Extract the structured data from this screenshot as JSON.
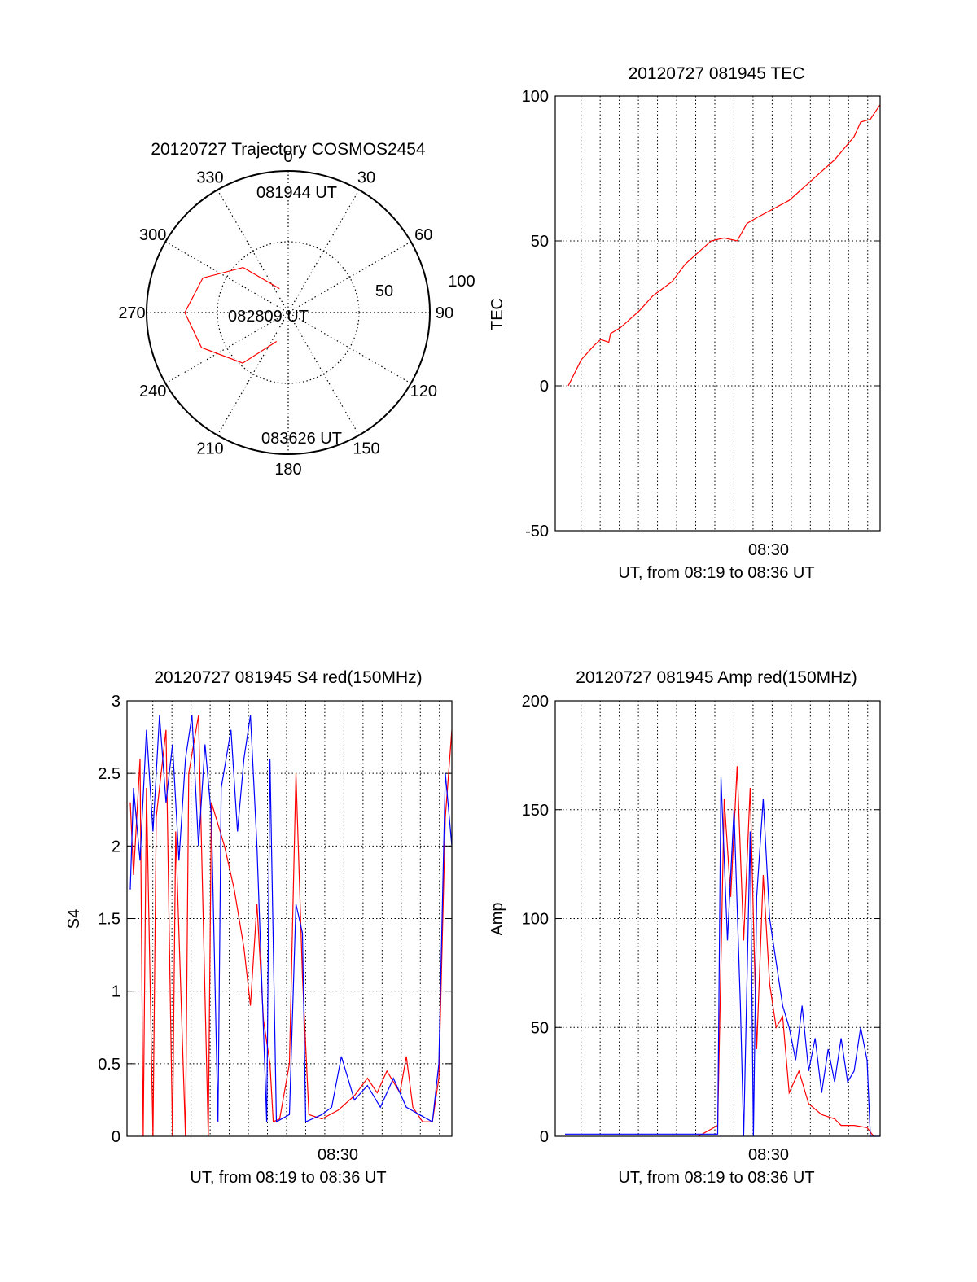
{
  "colors": {
    "red": "#ff0000",
    "blue": "#0000ff",
    "axis": "#000000",
    "grid": "#000000"
  },
  "chart_data": [
    {
      "id": "trajectory",
      "type": "polar",
      "title": "20120727 Trajectory COSMOS2454",
      "angle_labels": [
        "0",
        "30",
        "60",
        "90",
        "120",
        "150",
        "180",
        "210",
        "240",
        "270",
        "300",
        "330"
      ],
      "radial_labels": [
        "50",
        "100"
      ],
      "rlim": [
        0,
        100
      ],
      "grid": true,
      "annotations": [
        "081944 UT",
        "082809 UT",
        "083626 UT"
      ],
      "series": [
        {
          "color": "#ff0000",
          "points": [
            {
              "az": 340,
              "r": 18
            },
            {
              "az": 315,
              "r": 45
            },
            {
              "az": 292,
              "r": 65
            },
            {
              "az": 270,
              "r": 73
            },
            {
              "az": 248,
              "r": 66
            },
            {
              "az": 222,
              "r": 48
            },
            {
              "az": 202,
              "r": 22
            }
          ]
        }
      ]
    },
    {
      "id": "tec",
      "type": "line",
      "title": "20120727 081945 TEC",
      "xlabel": "UT, from 08:19 to 08:36 UT",
      "ylabel": "TEC",
      "xtick_label": "08:30",
      "ylim": [
        -50,
        100
      ],
      "yticks": [
        "-50",
        "0",
        "50",
        "100"
      ],
      "grid": true,
      "series": [
        {
          "color": "#ff0000",
          "points": [
            [
              0.04,
              0
            ],
            [
              0.08,
              9
            ],
            [
              0.12,
              14
            ],
            [
              0.14,
              16
            ],
            [
              0.165,
              15
            ],
            [
              0.17,
              18
            ],
            [
              0.2,
              20
            ],
            [
              0.26,
              26
            ],
            [
              0.3,
              31
            ],
            [
              0.36,
              36
            ],
            [
              0.4,
              42
            ],
            [
              0.45,
              47
            ],
            [
              0.48,
              50
            ],
            [
              0.52,
              51
            ],
            [
              0.56,
              50
            ],
            [
              0.59,
              56
            ],
            [
              0.62,
              58
            ],
            [
              0.72,
              64
            ],
            [
              0.8,
              72
            ],
            [
              0.86,
              78
            ],
            [
              0.92,
              86
            ],
            [
              0.94,
              91
            ],
            [
              0.97,
              92
            ],
            [
              1.0,
              97
            ]
          ]
        }
      ]
    },
    {
      "id": "s4",
      "type": "line",
      "title": "20120727 081945 S4 red(150MHz)",
      "xlabel": "UT, from 08:19 to 08:36 UT",
      "ylabel": "S4",
      "xtick_label": "08:30",
      "ylim": [
        0,
        3
      ],
      "yticks": [
        "0",
        "0.5",
        "1",
        "1.5",
        "2",
        "2.5",
        "3"
      ],
      "grid": true,
      "series": [
        {
          "color": "#ff0000",
          "points": [
            [
              0.01,
              2.3
            ],
            [
              0.02,
              1.8
            ],
            [
              0.04,
              2.6
            ],
            [
              0.05,
              0
            ],
            [
              0.06,
              2.4
            ],
            [
              0.08,
              0
            ],
            [
              0.09,
              2.2
            ],
            [
              0.12,
              2.8
            ],
            [
              0.14,
              0
            ],
            [
              0.15,
              2.1
            ],
            [
              0.18,
              0
            ],
            [
              0.19,
              2.5
            ],
            [
              0.22,
              2.9
            ],
            [
              0.25,
              0
            ],
            [
              0.26,
              2.3
            ],
            [
              0.3,
              2.0
            ],
            [
              0.33,
              1.7
            ],
            [
              0.36,
              1.3
            ],
            [
              0.38,
              0.9
            ],
            [
              0.4,
              1.6
            ],
            [
              0.42,
              0.8
            ],
            [
              0.44,
              0.5
            ],
            [
              0.45,
              0.1
            ],
            [
              0.47,
              0.12
            ],
            [
              0.5,
              0.5
            ],
            [
              0.52,
              2.5
            ],
            [
              0.54,
              1.1
            ],
            [
              0.56,
              0.15
            ],
            [
              0.6,
              0.12
            ],
            [
              0.65,
              0.18
            ],
            [
              0.7,
              0.28
            ],
            [
              0.74,
              0.4
            ],
            [
              0.77,
              0.3
            ],
            [
              0.8,
              0.45
            ],
            [
              0.84,
              0.3
            ],
            [
              0.86,
              0.55
            ],
            [
              0.88,
              0.2
            ],
            [
              0.91,
              0.1
            ],
            [
              0.94,
              0.1
            ],
            [
              0.96,
              0.4
            ],
            [
              0.98,
              2.2
            ],
            [
              1.0,
              2.8
            ]
          ]
        },
        {
          "color": "#0000ff",
          "points": [
            [
              0.01,
              1.7
            ],
            [
              0.02,
              2.4
            ],
            [
              0.04,
              1.9
            ],
            [
              0.06,
              2.8
            ],
            [
              0.08,
              2.1
            ],
            [
              0.1,
              2.9
            ],
            [
              0.12,
              2.3
            ],
            [
              0.14,
              2.7
            ],
            [
              0.16,
              1.9
            ],
            [
              0.18,
              2.6
            ],
            [
              0.2,
              2.9
            ],
            [
              0.22,
              2.0
            ],
            [
              0.24,
              2.7
            ],
            [
              0.26,
              2.2
            ],
            [
              0.28,
              0.1
            ],
            [
              0.29,
              2.4
            ],
            [
              0.32,
              2.8
            ],
            [
              0.34,
              2.1
            ],
            [
              0.36,
              2.6
            ],
            [
              0.38,
              2.9
            ],
            [
              0.4,
              2.0
            ],
            [
              0.43,
              0.1
            ],
            [
              0.44,
              2.6
            ],
            [
              0.46,
              0.1
            ],
            [
              0.5,
              0.15
            ],
            [
              0.52,
              1.6
            ],
            [
              0.54,
              1.4
            ],
            [
              0.55,
              0.1
            ],
            [
              0.6,
              0.15
            ],
            [
              0.63,
              0.2
            ],
            [
              0.66,
              0.55
            ],
            [
              0.7,
              0.25
            ],
            [
              0.74,
              0.35
            ],
            [
              0.78,
              0.2
            ],
            [
              0.82,
              0.4
            ],
            [
              0.86,
              0.2
            ],
            [
              0.9,
              0.15
            ],
            [
              0.94,
              0.1
            ],
            [
              0.96,
              0.5
            ],
            [
              0.98,
              2.5
            ],
            [
              1.0,
              2.0
            ]
          ]
        }
      ]
    },
    {
      "id": "amp",
      "type": "line",
      "title": "20120727 081945 Amp red(150MHz)",
      "xlabel": "UT, from 08:19 to 08:36 UT",
      "ylabel": "Amp",
      "xtick_label": "08:30",
      "ylim": [
        0,
        200
      ],
      "yticks": [
        "0",
        "50",
        "100",
        "150",
        "200"
      ],
      "grid": true,
      "series": [
        {
          "color": "#ff0000",
          "points": [
            [
              0.44,
              0
            ],
            [
              0.5,
              5
            ],
            [
              0.52,
              155
            ],
            [
              0.54,
              110
            ],
            [
              0.56,
              170
            ],
            [
              0.58,
              90
            ],
            [
              0.6,
              160
            ],
            [
              0.62,
              40
            ],
            [
              0.64,
              120
            ],
            [
              0.66,
              70
            ],
            [
              0.68,
              50
            ],
            [
              0.7,
              55
            ],
            [
              0.72,
              20
            ],
            [
              0.75,
              30
            ],
            [
              0.78,
              15
            ],
            [
              0.82,
              10
            ],
            [
              0.86,
              8
            ],
            [
              0.88,
              5
            ],
            [
              0.92,
              5
            ],
            [
              0.96,
              4
            ],
            [
              0.98,
              0
            ]
          ]
        },
        {
          "color": "#0000ff",
          "points": [
            [
              0.03,
              1
            ],
            [
              0.1,
              1
            ],
            [
              0.2,
              1
            ],
            [
              0.3,
              1
            ],
            [
              0.4,
              1
            ],
            [
              0.5,
              1
            ],
            [
              0.51,
              165
            ],
            [
              0.53,
              90
            ],
            [
              0.55,
              150
            ],
            [
              0.57,
              60
            ],
            [
              0.58,
              0
            ],
            [
              0.6,
              140
            ],
            [
              0.61,
              0
            ],
            [
              0.62,
              110
            ],
            [
              0.64,
              155
            ],
            [
              0.66,
              100
            ],
            [
              0.68,
              80
            ],
            [
              0.7,
              60
            ],
            [
              0.72,
              50
            ],
            [
              0.74,
              35
            ],
            [
              0.76,
              60
            ],
            [
              0.78,
              30
            ],
            [
              0.8,
              45
            ],
            [
              0.82,
              20
            ],
            [
              0.84,
              40
            ],
            [
              0.86,
              25
            ],
            [
              0.88,
              45
            ],
            [
              0.9,
              25
            ],
            [
              0.92,
              30
            ],
            [
              0.94,
              50
            ],
            [
              0.96,
              35
            ],
            [
              0.97,
              0
            ],
            [
              1.0,
              0
            ]
          ]
        }
      ]
    }
  ]
}
